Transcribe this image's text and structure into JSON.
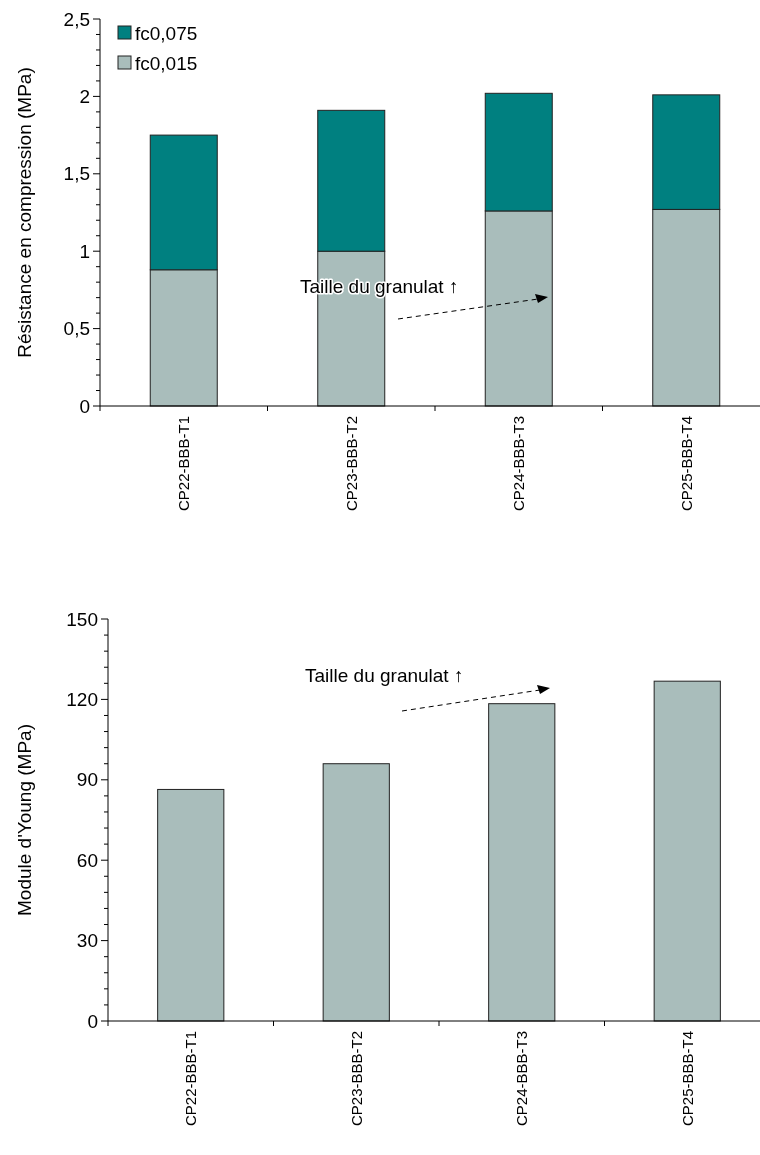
{
  "chart_data": [
    {
      "type": "bar",
      "stacked": true,
      "ylabel": "Résistance en compression (MPa)",
      "categories": [
        "CP22-BBB-T1",
        "CP23-BBB-T2",
        "CP24-BBB-T3",
        "CP25-BBB-T4"
      ],
      "series": [
        {
          "name": "fc0,015",
          "color": "#a9bdbb",
          "values": [
            0.88,
            1.0,
            1.26,
            1.27
          ]
        },
        {
          "name": "fc0,075",
          "color": "#008080",
          "values": [
            0.87,
            0.91,
            0.76,
            0.74
          ]
        }
      ],
      "ylim": [
        0,
        2.5
      ],
      "yticks": [
        0,
        {
          "value": 0.1,
          "label": null
        },
        {
          "value": 0.2,
          "label": null
        },
        {
          "value": 0.3,
          "label": null
        },
        {
          "value": 0.4,
          "label": null
        },
        {
          "value": 0.5,
          "label": "0,5"
        },
        {
          "value": 0.6,
          "label": null
        },
        {
          "value": 0.7,
          "label": null
        },
        {
          "value": 0.8,
          "label": null
        },
        {
          "value": 0.9,
          "label": null
        },
        1,
        {
          "value": 1.1,
          "label": null
        },
        {
          "value": 1.2,
          "label": null
        },
        {
          "value": 1.3,
          "label": null
        },
        {
          "value": 1.4,
          "label": null
        },
        {
          "value": 1.5,
          "label": "1,5"
        },
        {
          "value": 1.6,
          "label": null
        },
        {
          "value": 1.7,
          "label": null
        },
        {
          "value": 1.8,
          "label": null
        },
        {
          "value": 1.9,
          "label": null
        },
        2,
        {
          "value": 2.1,
          "label": null
        },
        {
          "value": 2.2,
          "label": null
        },
        {
          "value": 2.3,
          "label": null
        },
        {
          "value": 2.4,
          "label": null
        },
        {
          "value": 2.5,
          "label": "2,5"
        }
      ],
      "legend": "top left",
      "annotations": [
        "Taille du granulat ↑"
      ]
    },
    {
      "type": "bar",
      "ylabel": "Module d'Young (MPa)",
      "categories": [
        "CP22-BBB-T1",
        "CP23-BBB-T2",
        "CP24-BBB-T3",
        "CP25-BBB-T4"
      ],
      "series": [
        {
          "color": "#a9bdbb",
          "values": [
            86.4,
            96.0,
            118.4,
            126.8
          ]
        }
      ],
      "ylim": [
        0,
        150
      ],
      "yticks": [
        0,
        {
          "value": 6,
          "label": null
        },
        {
          "value": 12,
          "label": null
        },
        {
          "value": 18,
          "label": null
        },
        {
          "value": 24,
          "label": null
        },
        30,
        {
          "value": 36,
          "label": null
        },
        {
          "value": 42,
          "label": null
        },
        {
          "value": 48,
          "label": null
        },
        {
          "value": 54,
          "label": null
        },
        60,
        {
          "value": 66,
          "label": null
        },
        {
          "value": 72,
          "label": null
        },
        {
          "value": 78,
          "label": null
        },
        {
          "value": 84,
          "label": null
        },
        90,
        {
          "value": 96,
          "label": null
        },
        {
          "value": 102,
          "label": null
        },
        {
          "value": 108,
          "label": null
        },
        {
          "value": 114,
          "label": null
        },
        120,
        {
          "value": 126,
          "label": null
        },
        {
          "value": 132,
          "label": null
        },
        {
          "value": 138,
          "label": null
        },
        {
          "value": 144,
          "label": null
        },
        150
      ],
      "annotations": [
        "Taille du granulat ↑"
      ]
    }
  ]
}
